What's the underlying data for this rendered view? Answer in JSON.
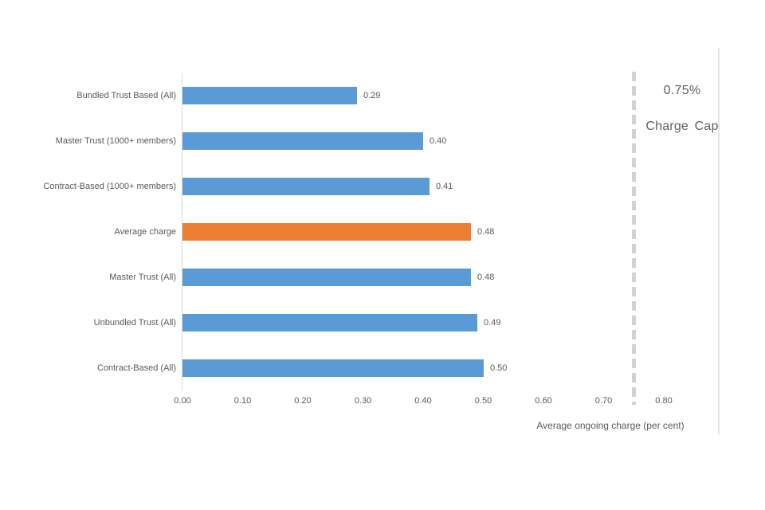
{
  "chart_data": {
    "type": "bar",
    "orientation": "horizontal",
    "categories": [
      "Bundled Trust Based (All)",
      "Master Trust (1000+ members)",
      "Contract-Based (1000+ members)",
      "Average charge",
      "Master Trust (All)",
      "Unbundled Trust (All)",
      "Contract-Based (All)"
    ],
    "values": [
      0.29,
      0.4,
      0.41,
      0.48,
      0.48,
      0.49,
      0.5
    ],
    "value_labels": [
      "0.29",
      "0.40",
      "0.41",
      "0.48",
      "0.48",
      "0.49",
      "0.50"
    ],
    "highlight_index": 3,
    "title": "",
    "xlabel": "Average ongoing charge (per cent)",
    "ylabel": "",
    "xlim": [
      0,
      0.8
    ],
    "xticks": [
      "0.00",
      "0.10",
      "0.20",
      "0.30",
      "0.40",
      "0.50",
      "0.60",
      "0.70",
      "0.80"
    ],
    "grid": false,
    "legend": "none",
    "annotation": {
      "line_value": 0.75,
      "label_value": "0.75%",
      "label_text": "Charge Cap"
    },
    "colors": {
      "bar": "#5b9bd5",
      "highlight": "#ed7d31",
      "axis_line": "#d9d9d9",
      "cap_line": "#d2d2d2",
      "text": "#595959"
    }
  }
}
